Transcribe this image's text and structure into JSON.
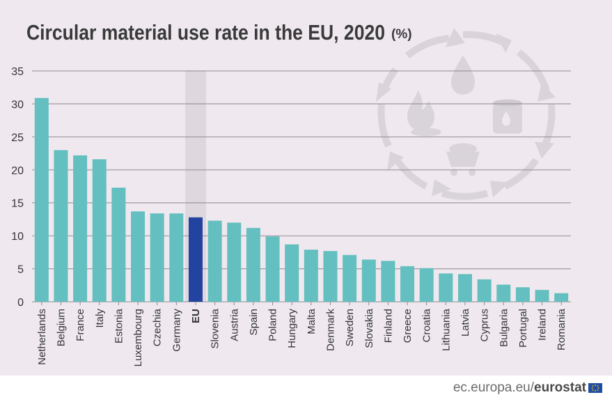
{
  "chart_data": {
    "type": "bar",
    "title": "Circular material use rate in the EU, 2020",
    "title_unit": "(%)",
    "xlabel": "",
    "ylabel": "",
    "ylim": [
      0,
      35
    ],
    "yticks": [
      0,
      5,
      10,
      15,
      20,
      25,
      30,
      35
    ],
    "grid": true,
    "legend": "none",
    "highlight_category": "EU",
    "categories": [
      "Netherlands",
      "Belgium",
      "France",
      "Italy",
      "Estonia",
      "Luxembourg",
      "Czechia",
      "Germany",
      "EU",
      "Slovenia",
      "Austria",
      "Spain",
      "Poland",
      "Hungary",
      "Malta",
      "Denmark",
      "Sweden",
      "Slovakia",
      "Finland",
      "Greece",
      "Croatia",
      "Lithuania",
      "Latvia",
      "Cyprus",
      "Bulgaria",
      "Portugal",
      "Ireland",
      "Romania"
    ],
    "values": [
      30.9,
      23.0,
      22.2,
      21.6,
      17.3,
      13.7,
      13.4,
      13.4,
      12.8,
      12.3,
      12.0,
      11.2,
      9.9,
      8.7,
      7.9,
      7.7,
      7.1,
      6.4,
      6.2,
      5.4,
      5.1,
      4.3,
      4.2,
      3.4,
      2.6,
      2.2,
      1.8,
      1.3
    ]
  },
  "colors": {
    "bar": "#63bfc0",
    "bar_highlight": "#2243a0",
    "highlight_band": "#ded8de",
    "grid": "#8e8a8e",
    "background": "#efe9ef",
    "decoration": "#d9d4d9",
    "title": "#3a3a3a"
  },
  "decoration_icons": [
    "recycle-arrows-icon",
    "oil-drop-icon",
    "oil-barrel-icon",
    "fire-icon",
    "mining-cart-icon"
  ],
  "footer": {
    "site": "ec.europa.eu/",
    "brand": "eurostat"
  }
}
